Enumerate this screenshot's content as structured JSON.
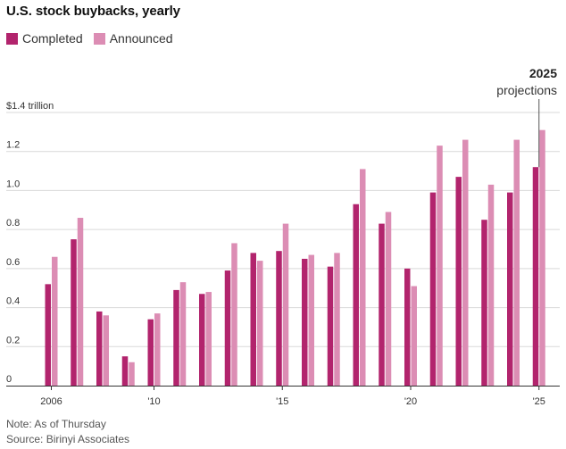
{
  "title": "U.S. stock buybacks, yearly",
  "legend": {
    "completed": "Completed",
    "announced": "Announced"
  },
  "colors": {
    "completed": "#b2246d",
    "announced": "#dc8db4",
    "grid": "#d9d9d9",
    "axis": "#333333"
  },
  "annotation": {
    "year": "2025",
    "label": "projections"
  },
  "note": "Note: As of Thursday",
  "source": "Source: Birinyi Associates",
  "chart_data": {
    "type": "bar",
    "title": "U.S. stock buybacks, yearly",
    "categories": [
      2006,
      2007,
      2008,
      2009,
      2010,
      2011,
      2012,
      2013,
      2014,
      2015,
      2016,
      2017,
      2018,
      2019,
      2020,
      2021,
      2022,
      2023,
      2024,
      2025
    ],
    "series": [
      {
        "name": "Completed",
        "values": [
          0.52,
          0.75,
          0.38,
          0.15,
          0.34,
          0.49,
          0.47,
          0.59,
          0.68,
          0.69,
          0.65,
          0.61,
          0.93,
          0.83,
          0.6,
          0.99,
          1.07,
          0.85,
          0.99,
          1.12
        ]
      },
      {
        "name": "Announced",
        "values": [
          0.66,
          0.86,
          0.36,
          0.12,
          0.37,
          0.53,
          0.48,
          0.73,
          0.64,
          0.83,
          0.67,
          0.68,
          1.11,
          0.89,
          0.51,
          1.23,
          1.26,
          1.03,
          1.26,
          1.31
        ]
      }
    ],
    "ylim": [
      0,
      1.4
    ],
    "yticks": [
      0,
      0.2,
      0.4,
      0.6,
      0.8,
      1.0,
      1.2,
      1.4
    ],
    "ytick_labels": [
      "0",
      "0.2",
      "0.4",
      "0.6",
      "0.8",
      "1.0",
      "1.2",
      "$1.4 trillion"
    ],
    "xticks": [
      2006,
      2010,
      2015,
      2020,
      2025
    ],
    "xtick_labels": [
      "2006",
      "'10",
      "'15",
      "'20",
      "'25"
    ],
    "grid": true,
    "legend_position": "top-left"
  }
}
